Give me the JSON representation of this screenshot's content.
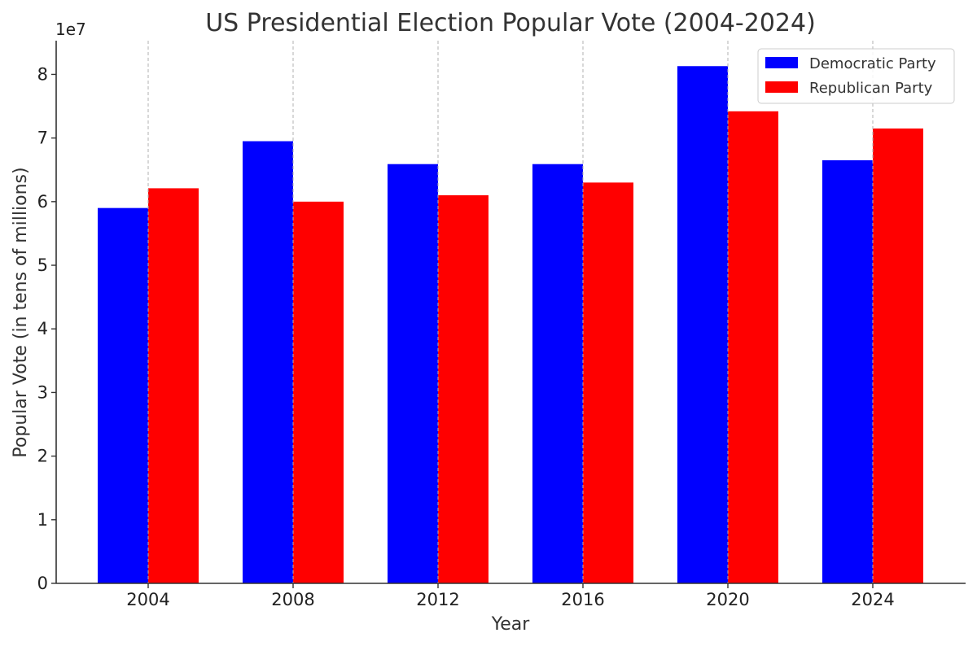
{
  "chart_data": {
    "type": "bar",
    "title": "US Presidential Election Popular Vote (2004-2024)",
    "xlabel": "Year",
    "ylabel": "Popular Vote (in tens of millions)",
    "y_offset_label": "1e7",
    "categories": [
      "2004",
      "2008",
      "2012",
      "2016",
      "2020",
      "2024"
    ],
    "series": [
      {
        "name": "Democratic Party",
        "color": "#0000ff",
        "values": [
          59000000,
          69500000,
          65900000,
          65900000,
          81300000,
          66500000
        ]
      },
      {
        "name": "Republican Party",
        "color": "#ff0000",
        "values": [
          62100000,
          60000000,
          61000000,
          63000000,
          74200000,
          71500000
        ]
      }
    ],
    "ylim": [
      0,
      85300000
    ],
    "yticks": [
      0,
      10000000,
      20000000,
      30000000,
      40000000,
      50000000,
      60000000,
      70000000,
      80000000
    ],
    "ytick_labels": [
      "0",
      "1",
      "2",
      "3",
      "4",
      "5",
      "6",
      "7",
      "8"
    ],
    "grid": "vertical dashed at categories",
    "legend_position": "top-right"
  }
}
